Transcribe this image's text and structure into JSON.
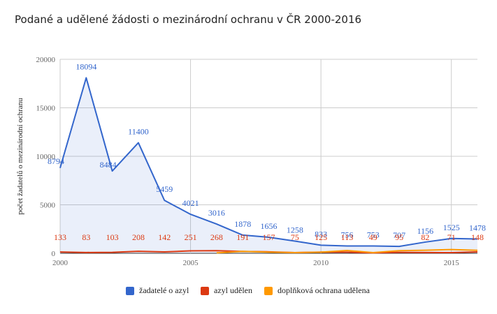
{
  "chart_data": {
    "type": "area",
    "title": "Podané a udělené žádosti o mezinárodní ochranu v ČR 2000-2016",
    "ylabel": "počet žadatelů o mezinárodní ochranu",
    "xlabel": "",
    "xlim": [
      2000,
      2016
    ],
    "ylim": [
      0,
      20000
    ],
    "x_ticks": [
      2000,
      2005,
      2010,
      2015
    ],
    "x_tick_labels": [
      "2000",
      "2005",
      "2010",
      "2015"
    ],
    "y_ticks": [
      0,
      5000,
      10000,
      15000,
      20000
    ],
    "y_tick_labels": [
      "0",
      "5000",
      "10000",
      "15000",
      "20000"
    ],
    "grid": true,
    "legend_position": "bottom",
    "x": [
      2000,
      2001,
      2002,
      2003,
      2004,
      2005,
      2006,
      2007,
      2008,
      2009,
      2010,
      2011,
      2012,
      2013,
      2014,
      2015,
      2016
    ],
    "series": [
      {
        "name": "žadatelé o azyl",
        "color": "#3366cc",
        "filled": true,
        "values": [
          8794,
          18094,
          8484,
          11400,
          5459,
          4021,
          3016,
          1878,
          1656,
          1258,
          833,
          756,
          753,
          707,
          1156,
          1525,
          1478
        ],
        "labels": [
          "8794",
          "18094",
          "8484",
          "11400",
          "5459",
          "4021",
          "3016",
          "1878",
          "1656",
          "1258",
          "833",
          "756",
          "753",
          "707",
          "1156",
          "1525",
          "1478"
        ]
      },
      {
        "name": "azyl udělen",
        "color": "#dc3912",
        "filled": false,
        "values": [
          133,
          83,
          103,
          208,
          142,
          251,
          268,
          191,
          157,
          75,
          125,
          113,
          49,
          95,
          82,
          71,
          148
        ],
        "labels": [
          "133",
          "83",
          "103",
          "208",
          "142",
          "251",
          "268",
          "191",
          "157",
          "75",
          "125",
          "113",
          "49",
          "95",
          "82",
          "71",
          "148"
        ]
      },
      {
        "name": "doplňková ochrana udělena",
        "color": "#ff9900",
        "filled": false,
        "values": [
          null,
          null,
          null,
          null,
          null,
          null,
          43,
          200,
          120,
          75,
          115,
          290,
          75,
          272,
          312,
          386,
          302
        ],
        "labels": []
      }
    ]
  }
}
